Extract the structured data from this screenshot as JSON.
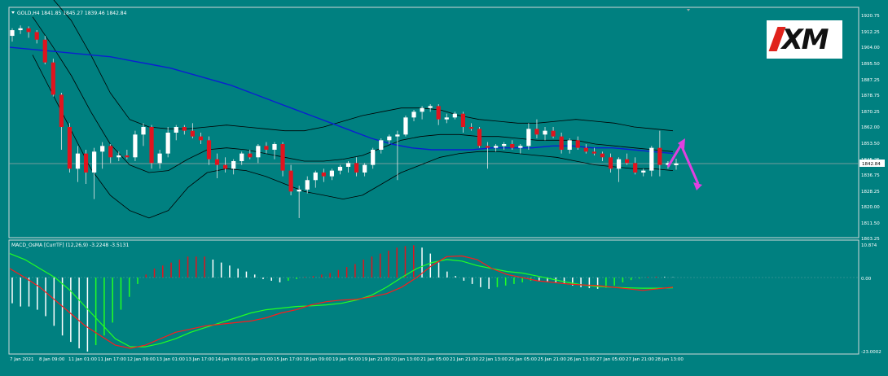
{
  "main_chart": {
    "header": "GOLD,H4  1841.85 1845.27 1839.46 1842.84",
    "current_price_label": "1842.84",
    "price_axis_labels": [
      "1920.75",
      "1912.25",
      "1904.00",
      "1895.50",
      "1887.25",
      "1878.75",
      "1870.25",
      "1862.00",
      "1853.50",
      "1845.25",
      "1836.75",
      "1828.25",
      "1820.00",
      "1811.50",
      "1803.25"
    ]
  },
  "indicator": {
    "header": "MACD_OsMA [CurrTF] (12,26,9) -3.2248 -3.5131",
    "axis_labels": [
      "10.874",
      "0.00",
      "-23.0002"
    ]
  },
  "time_axis_labels": [
    "7 Jan 2021",
    "8 Jan 09:00",
    "11 Jan 01:00",
    "11 Jan 17:00",
    "12 Jan 09:00",
    "13 Jan 01:00",
    "13 Jan 17:00",
    "14 Jan 09:00",
    "15 Jan 01:00",
    "15 Jan 17:00",
    "18 Jan 09:00",
    "19 Jan 05:00",
    "19 Jan 21:00",
    "20 Jan 13:00",
    "21 Jan 05:00",
    "21 Jan 21:00",
    "22 Jan 13:00",
    "25 Jan 05:00",
    "25 Jan 21:00",
    "26 Jan 13:00",
    "27 Jan 05:00",
    "27 Jan 21:00",
    "28 Jan 13:00"
  ],
  "logo": {
    "text": "XM"
  },
  "colors": {
    "background": "#008080",
    "bull_candle": "#ffffff",
    "bear_candle": "#e0141e",
    "ma_line": "#0b1fd1",
    "bands": "#000000",
    "arrow": "#e040e0",
    "macd_main": "#ff1a1a",
    "macd_signal": "#22ff22"
  },
  "candles": [
    [
      1910.0,
      1914.0,
      1907.0,
      1913.0
    ],
    [
      1913.0,
      1915.5,
      1911.0,
      1914.0
    ],
    [
      1914.0,
      1915.0,
      1909.0,
      1912.0
    ],
    [
      1912.0,
      1913.0,
      1906.0,
      1908.0
    ],
    [
      1908.0,
      1910.0,
      1895.0,
      1896.0
    ],
    [
      1896.0,
      1898.0,
      1878.0,
      1879.0
    ],
    [
      1879.0,
      1880.0,
      1850.0,
      1862.0
    ],
    [
      1862.0,
      1864.0,
      1838.0,
      1840.0
    ],
    [
      1840.0,
      1852.0,
      1833.0,
      1848.0
    ],
    [
      1848.0,
      1850.0,
      1832.0,
      1838.0
    ],
    [
      1838.0,
      1851.0,
      1824.0,
      1849.0
    ],
    [
      1849.0,
      1854.0,
      1840.0,
      1852.0
    ],
    [
      1852.0,
      1853.0,
      1843.0,
      1846.0
    ],
    [
      1846.0,
      1849.0,
      1844.0,
      1847.0
    ],
    [
      1847.0,
      1850.0,
      1845.0,
      1846.0
    ],
    [
      1846.0,
      1860.0,
      1844.0,
      1858.0
    ],
    [
      1858.0,
      1864.0,
      1852.0,
      1862.0
    ],
    [
      1862.0,
      1863.0,
      1840.0,
      1843.0
    ],
    [
      1843.0,
      1850.0,
      1840.0,
      1848.0
    ],
    [
      1848.0,
      1862.0,
      1846.0,
      1859.0
    ],
    [
      1859.0,
      1863.0,
      1855.0,
      1862.0
    ],
    [
      1862.0,
      1863.0,
      1858.0,
      1860.0
    ],
    [
      1860.0,
      1864.0,
      1856.0,
      1857.0
    ],
    [
      1857.0,
      1859.0,
      1853.0,
      1855.0
    ],
    [
      1855.0,
      1857.0,
      1842.0,
      1845.0
    ],
    [
      1845.0,
      1848.0,
      1835.0,
      1842.0
    ],
    [
      1842.0,
      1846.0,
      1838.0,
      1840.0
    ],
    [
      1840.0,
      1845.0,
      1837.0,
      1844.0
    ],
    [
      1844.0,
      1849.0,
      1842.0,
      1848.0
    ],
    [
      1848.0,
      1850.0,
      1845.0,
      1846.0
    ],
    [
      1846.0,
      1853.0,
      1843.0,
      1852.0
    ],
    [
      1852.0,
      1854.0,
      1848.0,
      1850.0
    ],
    [
      1850.0,
      1854.0,
      1845.0,
      1853.0
    ],
    [
      1853.0,
      1854.0,
      1836.0,
      1839.0
    ],
    [
      1839.0,
      1842.0,
      1826.0,
      1828.0
    ],
    [
      1828.0,
      1831.0,
      1814.0,
      1829.0
    ],
    [
      1829.0,
      1836.0,
      1827.0,
      1834.0
    ],
    [
      1834.0,
      1839.0,
      1830.0,
      1838.0
    ],
    [
      1838.0,
      1840.0,
      1833.0,
      1836.0
    ],
    [
      1836.0,
      1840.0,
      1834.0,
      1839.0
    ],
    [
      1839.0,
      1842.0,
      1837.0,
      1841.0
    ],
    [
      1841.0,
      1844.0,
      1838.0,
      1843.0
    ],
    [
      1843.0,
      1846.0,
      1836.0,
      1838.0
    ],
    [
      1838.0,
      1843.0,
      1836.0,
      1842.0
    ],
    [
      1842.0,
      1851.0,
      1840.0,
      1850.0
    ],
    [
      1850.0,
      1856.0,
      1848.0,
      1855.0
    ],
    [
      1855.0,
      1858.0,
      1853.0,
      1857.0
    ],
    [
      1857.0,
      1860.0,
      1834.0,
      1858.0
    ],
    [
      1858.0,
      1868.0,
      1857.0,
      1867.0
    ],
    [
      1867.0,
      1871.0,
      1865.0,
      1870.0
    ],
    [
      1870.0,
      1873.0,
      1866.0,
      1872.0
    ],
    [
      1872.0,
      1874.0,
      1870.0,
      1873.0
    ],
    [
      1873.0,
      1874.0,
      1863.0,
      1866.0
    ],
    [
      1866.0,
      1869.0,
      1864.0,
      1867.0
    ],
    [
      1867.0,
      1870.0,
      1866.0,
      1869.0
    ],
    [
      1869.0,
      1870.0,
      1859.0,
      1862.0
    ],
    [
      1862.0,
      1864.0,
      1860.0,
      1861.0
    ],
    [
      1861.0,
      1862.0,
      1851.0,
      1852.0
    ],
    [
      1852.0,
      1854.0,
      1840.0,
      1851.0
    ],
    [
      1851.0,
      1853.0,
      1849.0,
      1852.0
    ],
    [
      1852.0,
      1854.0,
      1850.0,
      1853.0
    ],
    [
      1853.0,
      1855.0,
      1850.0,
      1851.0
    ],
    [
      1851.0,
      1853.0,
      1848.0,
      1852.0
    ],
    [
      1852.0,
      1864.0,
      1850.0,
      1861.0
    ],
    [
      1861.0,
      1866.0,
      1856.0,
      1858.0
    ],
    [
      1858.0,
      1862.0,
      1855.0,
      1860.0
    ],
    [
      1860.0,
      1862.0,
      1856.0,
      1857.0
    ],
    [
      1857.0,
      1859.0,
      1848.0,
      1850.0
    ],
    [
      1850.0,
      1856.0,
      1848.0,
      1855.0
    ],
    [
      1855.0,
      1857.0,
      1850.0,
      1851.0
    ],
    [
      1851.0,
      1853.0,
      1848.0,
      1849.0
    ],
    [
      1849.0,
      1851.0,
      1847.0,
      1848.0
    ],
    [
      1848.0,
      1849.0,
      1844.0,
      1846.0
    ],
    [
      1846.0,
      1848.0,
      1838.0,
      1840.0
    ],
    [
      1840.0,
      1846.0,
      1833.0,
      1845.0
    ],
    [
      1845.0,
      1848.0,
      1842.0,
      1843.0
    ],
    [
      1843.0,
      1846.0,
      1837.0,
      1838.0
    ],
    [
      1838.0,
      1840.0,
      1836.0,
      1839.0
    ],
    [
      1839.0,
      1852.0,
      1836.0,
      1851.0
    ],
    [
      1851.0,
      1860.0,
      1836.0,
      1842.0
    ],
    [
      1842.0,
      1844.0,
      1840.0,
      1843.0
    ],
    [
      1841.85,
      1845.27,
      1839.46,
      1842.84
    ]
  ],
  "ma_line": [
    1904,
    1903,
    1902,
    1901,
    1900,
    1899,
    1897,
    1895,
    1893,
    1890,
    1887,
    1884,
    1880,
    1876,
    1872,
    1868,
    1864,
    1860,
    1856,
    1853,
    1851,
    1850,
    1850,
    1850,
    1851,
    1851,
    1851,
    1852,
    1852,
    1851,
    1851,
    1850,
    1849,
    1848
  ],
  "band_upper": [
    1940,
    1930,
    1918,
    1900,
    1880,
    1866,
    1862,
    1861,
    1861,
    1862,
    1863,
    1862,
    1861,
    1860,
    1860,
    1862,
    1865,
    1868,
    1870,
    1872,
    1872,
    1871,
    1868,
    1866,
    1865,
    1864,
    1864,
    1865,
    1866,
    1865,
    1864,
    1862,
    1861,
    1860
  ],
  "band_lower": [
    1900,
    1880,
    1860,
    1840,
    1826,
    1818,
    1814,
    1818,
    1830,
    1838,
    1840,
    1839,
    1836,
    1832,
    1828,
    1826,
    1824,
    1826,
    1832,
    1838,
    1842,
    1846,
    1848,
    1849,
    1849,
    1848,
    1847,
    1846,
    1844,
    1842,
    1841,
    1840,
    1840,
    1839
  ],
  "band_mid": [
    1920,
    1905,
    1889,
    1870,
    1853,
    1842,
    1838,
    1839,
    1845,
    1850,
    1851,
    1850,
    1848,
    1846,
    1844,
    1844,
    1845,
    1847,
    1851,
    1855,
    1857,
    1858,
    1858,
    1857,
    1857,
    1856,
    1855,
    1855,
    1855,
    1853,
    1852,
    1851,
    1850,
    1849
  ],
  "histogram": [
    -8,
    -9,
    -9,
    -10,
    -12,
    -15,
    -18,
    -20,
    -22,
    -23,
    -21,
    -18,
    -14,
    -10,
    -6,
    -2,
    1,
    3,
    4,
    5,
    6,
    7,
    7,
    7,
    6,
    5,
    4,
    3,
    2,
    1,
    -0.5,
    -1,
    -1.5,
    -1,
    -0.5,
    0.2,
    0.5,
    1,
    1.5,
    2.5,
    3.5,
    4.5,
    6,
    7,
    8,
    9,
    10,
    10.5,
    10.8,
    10,
    8,
    5,
    2,
    0.5,
    -1,
    -2,
    -3,
    -3.5,
    -3,
    -2.5,
    -2,
    -1.5,
    -1,
    -1,
    -1.2,
    -1.5,
    -2,
    -2.5,
    -3,
    -3.3,
    -3.5,
    -3.2,
    -2.5,
    -1.5,
    -0.8,
    -0.3,
    0.2,
    0.3,
    0.2,
    0.1
  ],
  "macd_line": [
    3,
    0,
    -3,
    -7,
    -11,
    -15,
    -18,
    -21,
    -22,
    -21,
    -19,
    -17,
    -16,
    -15,
    -14.5,
    -14,
    -13.5,
    -12.5,
    -11,
    -10,
    -8.5,
    -7.5,
    -7,
    -6.8,
    -6,
    -5,
    -3,
    0,
    4,
    7,
    7.2,
    6,
    3,
    1,
    0,
    -1,
    -1.5,
    -2,
    -2.3,
    -2.5,
    -3,
    -3.5,
    -4,
    -3.5,
    -3
  ],
  "signal_line": [
    8,
    6,
    3,
    0,
    -4,
    -9,
    -14,
    -19,
    -21.5,
    -21.5,
    -20.5,
    -19,
    -17,
    -15.5,
    -14,
    -12.5,
    -11,
    -10,
    -9.5,
    -9,
    -8.8,
    -8.5,
    -8,
    -7,
    -5.5,
    -3,
    0,
    3,
    5,
    6,
    5.5,
    4,
    3,
    2,
    1.5,
    0.5,
    -0.5,
    -1.5,
    -2.3,
    -2.8,
    -3,
    -3.2,
    -3.3,
    -3.3,
    -3.2
  ]
}
